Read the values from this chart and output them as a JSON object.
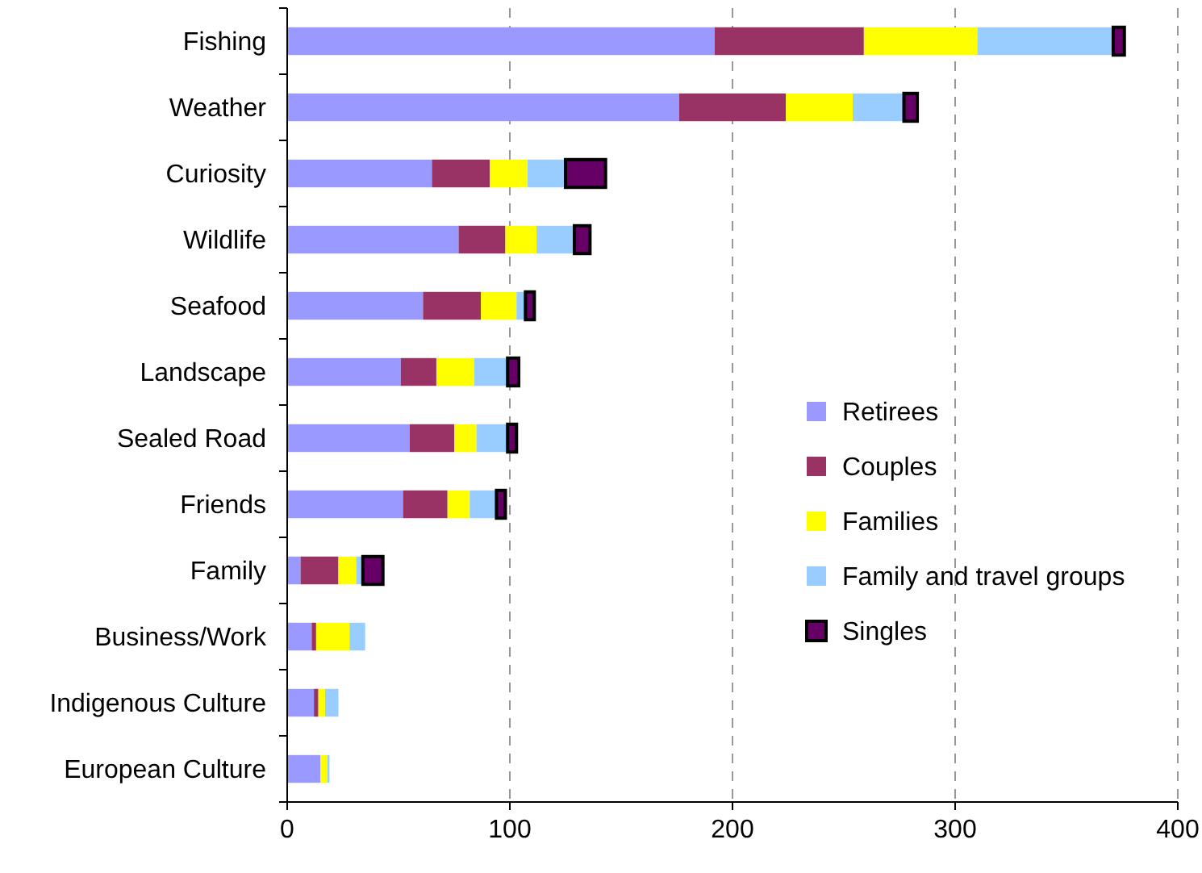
{
  "chart_data": {
    "type": "bar",
    "orientation": "horizontal",
    "stacked": true,
    "categories": [
      "Fishing",
      "Weather",
      "Curiosity",
      "Wildlife",
      "Seafood",
      "Landscape",
      "Sealed Road",
      "Friends",
      "Family",
      "Business/Work",
      "Indigenous Culture",
      "European Culture"
    ],
    "series": [
      {
        "name": "Retirees",
        "color": "#9999ff",
        "values": [
          192,
          176,
          65,
          77,
          61,
          51,
          55,
          52,
          6,
          11,
          12,
          15
        ]
      },
      {
        "name": "Couples",
        "color": "#993366",
        "values": [
          67,
          48,
          26,
          21,
          26,
          16,
          20,
          20,
          17,
          2,
          2,
          0
        ]
      },
      {
        "name": "Families",
        "color": "#ffff00",
        "values": [
          51,
          30,
          17,
          14,
          16,
          17,
          10,
          10,
          8,
          15,
          3,
          3
        ]
      },
      {
        "name": "Family and travel groups",
        "color": "#99ccff",
        "values": [
          61,
          23,
          17,
          17,
          4,
          15,
          14,
          12,
          3,
          7,
          6,
          1
        ]
      },
      {
        "name": "Singles",
        "color": "#660066",
        "values": [
          5,
          6,
          18,
          7,
          4,
          5,
          4,
          4,
          9,
          0,
          0,
          0
        ]
      }
    ],
    "xlim": [
      0,
      400
    ],
    "xticks": [
      0,
      100,
      200,
      300,
      400
    ],
    "grid": "x",
    "legend": "right"
  }
}
